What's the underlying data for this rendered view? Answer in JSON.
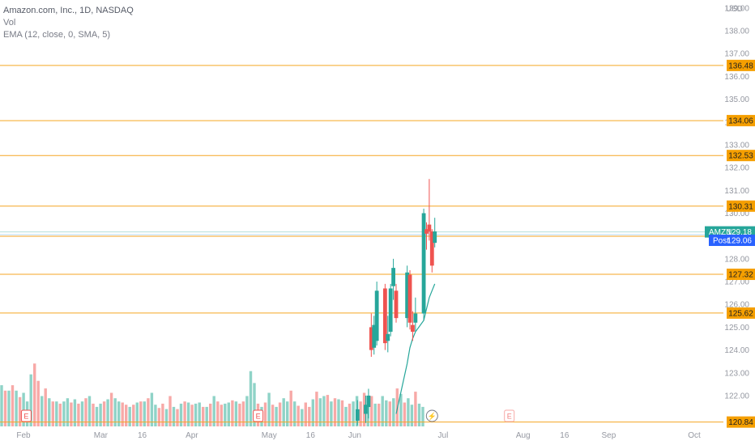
{
  "legend": {
    "symbol_line": "Amazon.com, Inc., 1D, NASDAQ",
    "volume_label": "Vol",
    "ema_label": "EMA (12, close, 0, SMA, 5)"
  },
  "colors": {
    "up": "#26a69a",
    "down": "#ef5350",
    "vol_up": "#8fd3c7",
    "vol_down": "#f7a9a7",
    "level_line": "#f5a623",
    "level_badge": "#f59f00",
    "ema": "#26a69a",
    "last_price_badge": "#26a69a",
    "post_badge": "#2962ff",
    "axis_text": "#9598a1",
    "event_earnings": "#ef5350",
    "event_dividend": "#26a69a"
  },
  "chart_data": {
    "type": "candlestick",
    "currency": "USD",
    "ylim": [
      120.65,
      139.35
    ],
    "y_ticks": [
      "122.00",
      "123.00",
      "124.00",
      "125.00",
      "126.00",
      "127.00",
      "128.00",
      "129.00",
      "130.00",
      "131.00",
      "132.00",
      "133.00",
      "134.00",
      "135.00",
      "136.00",
      "137.00",
      "138.00",
      "139.00"
    ],
    "x_labels": [
      {
        "label": "Feb",
        "date": "2023-02-01"
      },
      {
        "label": "Mar",
        "date": "2023-03-01"
      },
      {
        "label": "16",
        "date": "2023-03-16"
      },
      {
        "label": "Apr",
        "date": "2023-04-03"
      },
      {
        "label": "May",
        "date": "2023-05-01"
      },
      {
        "label": "16",
        "date": "2023-05-16"
      },
      {
        "label": "Jun",
        "date": "2023-06-01"
      },
      {
        "label": "Jul",
        "date": "2023-07-03"
      },
      {
        "label": "Aug",
        "date": "2023-08-01"
      },
      {
        "label": "16",
        "date": "2023-08-16"
      },
      {
        "label": "Sep",
        "date": "2023-09-01"
      },
      {
        "label": "Oct",
        "date": "2023-10-02"
      }
    ],
    "price_levels": [
      136.48,
      134.06,
      132.53,
      130.31,
      128.99,
      127.32,
      125.62,
      120.84
    ],
    "last_price": {
      "symbol": "AMZN",
      "value": "129.18"
    },
    "post_price": {
      "label": "Post",
      "value": "129.06"
    },
    "candles": [
      {
        "date": "2023-06-02",
        "o": 120.9,
        "h": 121.8,
        "l": 120.7,
        "c": 121.4
      },
      {
        "date": "2023-06-05",
        "o": 121.2,
        "h": 122.0,
        "l": 120.8,
        "c": 121.6
      },
      {
        "date": "2023-06-06",
        "o": 121.5,
        "h": 122.3,
        "l": 121.0,
        "c": 122.0
      },
      {
        "date": "2023-06-07",
        "o": 125.0,
        "h": 125.6,
        "l": 123.7,
        "c": 124.0
      },
      {
        "date": "2023-06-08",
        "o": 124.1,
        "h": 125.5,
        "l": 123.8,
        "c": 125.1
      },
      {
        "date": "2023-06-09",
        "o": 124.4,
        "h": 127.0,
        "l": 124.2,
        "c": 126.6
      },
      {
        "date": "2023-06-12",
        "o": 126.7,
        "h": 126.9,
        "l": 124.0,
        "c": 124.3
      },
      {
        "date": "2023-06-13",
        "o": 124.4,
        "h": 125.5,
        "l": 123.9,
        "c": 124.7
      },
      {
        "date": "2023-06-14",
        "o": 124.8,
        "h": 126.9,
        "l": 124.6,
        "c": 126.7
      },
      {
        "date": "2023-06-15",
        "o": 126.8,
        "h": 128.0,
        "l": 126.2,
        "c": 127.6
      },
      {
        "date": "2023-06-16",
        "o": 126.6,
        "h": 126.9,
        "l": 125.2,
        "c": 125.4
      },
      {
        "date": "2023-06-20",
        "o": 125.4,
        "h": 127.7,
        "l": 125.0,
        "c": 127.4
      },
      {
        "date": "2023-06-21",
        "o": 127.3,
        "h": 127.5,
        "l": 124.9,
        "c": 125.2
      },
      {
        "date": "2023-06-22",
        "o": 125.1,
        "h": 125.7,
        "l": 124.4,
        "c": 124.8
      },
      {
        "date": "2023-06-23",
        "o": 125.2,
        "h": 126.3,
        "l": 124.8,
        "c": 125.6
      },
      {
        "date": "2023-06-26",
        "o": 125.6,
        "h": 130.2,
        "l": 125.3,
        "c": 130.0
      },
      {
        "date": "2023-06-27",
        "o": 129.3,
        "h": 129.6,
        "l": 128.4,
        "c": 129.1
      },
      {
        "date": "2023-06-28",
        "o": 129.5,
        "h": 131.5,
        "l": 128.8,
        "c": 129.2
      },
      {
        "date": "2023-06-29",
        "o": 129.2,
        "h": 129.3,
        "l": 127.4,
        "c": 127.7
      },
      {
        "date": "2023-06-30",
        "o": 128.7,
        "h": 129.8,
        "l": 128.5,
        "c": 129.2
      }
    ],
    "ema_points": [
      {
        "date": "2023-06-16",
        "value": 121.2
      },
      {
        "date": "2023-06-20",
        "value": 123.4
      },
      {
        "date": "2023-06-21",
        "value": 124.1
      },
      {
        "date": "2023-06-22",
        "value": 124.5
      },
      {
        "date": "2023-06-23",
        "value": 124.8
      },
      {
        "date": "2023-06-26",
        "value": 125.3
      },
      {
        "date": "2023-06-27",
        "value": 125.8
      },
      {
        "date": "2023-06-28",
        "value": 126.3
      },
      {
        "date": "2023-06-29",
        "value": 126.6
      },
      {
        "date": "2023-06-30",
        "value": 126.9
      }
    ],
    "volume_scale_max": 100,
    "volume": [
      38,
      33,
      33,
      38,
      33,
      27,
      31,
      23,
      48,
      58,
      42,
      28,
      35,
      26,
      23,
      23,
      21,
      23,
      26,
      22,
      25,
      21,
      23,
      26,
      28,
      21,
      18,
      21,
      23,
      25,
      31,
      26,
      23,
      22,
      20,
      18,
      20,
      22,
      23,
      23,
      26,
      31,
      20,
      17,
      21,
      16,
      28,
      18,
      16,
      21,
      23,
      22,
      20,
      21,
      22,
      18,
      18,
      21,
      28,
      23,
      20,
      21,
      22,
      24,
      23,
      21,
      23,
      28,
      51,
      40,
      21,
      18,
      22,
      31,
      20,
      18,
      22,
      26,
      23,
      33,
      23,
      19,
      16,
      22,
      18,
      25,
      32,
      26,
      28,
      29,
      23,
      26,
      25,
      24,
      18,
      21,
      23,
      28,
      23,
      31,
      26,
      28,
      21,
      21,
      28,
      24,
      23,
      26,
      35,
      30,
      22,
      26,
      20,
      32,
      21,
      18
    ],
    "volume_dir": [
      1,
      0,
      1,
      0,
      1,
      0,
      1,
      1,
      1,
      0,
      0,
      1,
      0,
      1,
      0,
      1,
      0,
      1,
      1,
      0,
      1,
      0,
      1,
      0,
      1,
      0,
      1,
      1,
      0,
      1,
      0,
      1,
      1,
      0,
      0,
      1,
      0,
      1,
      0,
      1,
      0,
      1,
      1,
      0,
      0,
      1,
      0,
      1,
      0,
      1,
      0,
      1,
      0,
      1,
      1,
      0,
      1,
      0,
      1,
      0,
      0,
      1,
      1,
      0,
      1,
      0,
      0,
      1,
      1,
      1,
      0,
      1,
      0,
      1,
      0,
      1,
      0,
      1,
      1,
      0,
      1,
      0,
      1,
      0,
      0,
      1,
      0,
      1,
      1,
      0,
      1,
      0,
      1,
      0,
      1,
      0,
      1,
      1,
      0,
      0,
      1,
      0,
      1,
      0,
      1,
      1,
      0,
      1,
      0,
      1,
      0,
      1,
      1,
      0,
      1,
      1
    ],
    "events": [
      {
        "type": "earnings",
        "label": "E",
        "date": "2023-02-02"
      },
      {
        "type": "earnings",
        "label": "E",
        "date": "2023-04-27"
      },
      {
        "type": "split",
        "label": "⚡",
        "date": "2023-06-29"
      },
      {
        "type": "earnings-upcoming",
        "label": "E",
        "date": "2023-07-27"
      }
    ]
  }
}
